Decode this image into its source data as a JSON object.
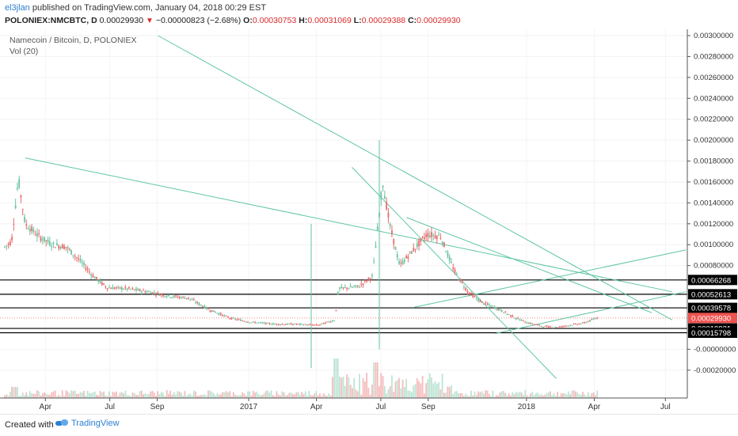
{
  "header": {
    "author": "el3jlan",
    "published_text": "published on TradingView.com, January 04, 2018 00:29 EST",
    "symbol": "POLONIEX:NMCBTC, D",
    "price": "0.00029930",
    "change_arrow": "▼",
    "change": "−0.00000823 (−2.68%)",
    "o_label": "O:",
    "o_value": "0.00030753",
    "h_label": "H:",
    "h_value": "0.00031069",
    "l_label": "L:",
    "l_value": "0.00029388",
    "c_label": "C:",
    "c_value": "0.00029930"
  },
  "legend": {
    "title": "Namecoin / Bitcoin, D, POLONIEX",
    "indicator": "Vol (20)"
  },
  "footer": {
    "created_with": "Created with",
    "brand": "TradingView"
  },
  "colors": {
    "trendline": "#5fc6a2",
    "level_line": "#000000",
    "candle_up": "#6cc3a0",
    "candle_down": "#e86b6b",
    "current_price": "#ef5350",
    "label_bg": "#000000"
  },
  "chart_data": {
    "type": "candlestick",
    "title": "Namecoin / Bitcoin, D, POLONIEX",
    "ylim": [
      -0.0003,
      0.003
    ],
    "y_ticks": [
      "0.00300000",
      "0.00280000",
      "0.00260000",
      "0.00240000",
      "0.00220000",
      "0.00200000",
      "0.00180000",
      "0.00160000",
      "0.00140000",
      "0.00120000",
      "0.00100000",
      "0.00080000",
      "-0.00000000",
      "-0.00020000"
    ],
    "x_ticks": [
      "Apr",
      "Jul",
      "Sep",
      "2017",
      "Apr",
      "Jul",
      "Sep",
      "2018",
      "Apr",
      "Jul"
    ],
    "horizontal_levels": [
      "0.00066268",
      "0.00052613",
      "0.00039578",
      "0.00019921",
      "0.00015798"
    ],
    "current_price": "0.00029930",
    "price_path": [
      [
        0,
        0.00098
      ],
      [
        0.01,
        0.00103
      ],
      [
        0.02,
        0.00163
      ],
      [
        0.03,
        0.0012
      ],
      [
        0.05,
        0.00108
      ],
      [
        0.07,
        0.001
      ],
      [
        0.09,
        0.00098
      ],
      [
        0.11,
        0.00085
      ],
      [
        0.13,
        0.0007
      ],
      [
        0.15,
        0.00059
      ],
      [
        0.18,
        0.00058
      ],
      [
        0.21,
        0.00055
      ],
      [
        0.24,
        0.00051
      ],
      [
        0.27,
        0.00049
      ],
      [
        0.3,
        0.00038
      ],
      [
        0.33,
        0.0003
      ],
      [
        0.36,
        0.00026
      ],
      [
        0.4,
        0.00024
      ],
      [
        0.43,
        0.00024
      ],
      [
        0.46,
        0.00023
      ],
      [
        0.485,
        0.00028
      ],
      [
        0.49,
        0.00058
      ],
      [
        0.52,
        0.0006
      ],
      [
        0.54,
        0.0007
      ],
      [
        0.555,
        0.0016
      ],
      [
        0.565,
        0.0012
      ],
      [
        0.58,
        0.0008
      ],
      [
        0.6,
        0.00095
      ],
      [
        0.62,
        0.0011
      ],
      [
        0.64,
        0.00108
      ],
      [
        0.66,
        0.00075
      ],
      [
        0.68,
        0.00055
      ],
      [
        0.7,
        0.00045
      ],
      [
        0.72,
        0.0004
      ],
      [
        0.75,
        0.0003
      ],
      [
        0.77,
        0.00025
      ],
      [
        0.79,
        0.00022
      ],
      [
        0.81,
        0.00021
      ],
      [
        0.83,
        0.00023
      ],
      [
        0.85,
        0.00025
      ],
      [
        0.87,
        0.0003
      ]
    ]
  }
}
